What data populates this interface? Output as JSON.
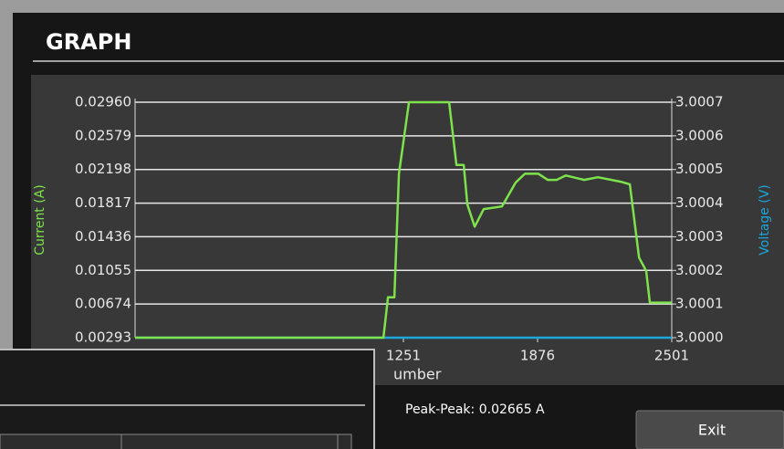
{
  "header": {
    "title": "GRAPH"
  },
  "chart_data": {
    "type": "line",
    "x": [
      1,
      1158,
      1179,
      1209,
      1230,
      1277,
      1464,
      1498,
      1532,
      1549,
      1583,
      1625,
      1710,
      1774,
      1817,
      1880,
      1923,
      1965,
      2008,
      2093,
      2157,
      2263,
      2306,
      2349,
      2382,
      2399,
      2501
    ],
    "series": [
      {
        "name": "Current (A)",
        "color": "#7ee24c",
        "values": [
          0.00293,
          0.00293,
          0.0075,
          0.0075,
          0.0215,
          0.0296,
          0.0296,
          0.0225,
          0.0225,
          0.018,
          0.0155,
          0.0175,
          0.0178,
          0.0205,
          0.0215,
          0.0215,
          0.0208,
          0.0208,
          0.0213,
          0.0208,
          0.0211,
          0.0206,
          0.0203,
          0.012,
          0.0105,
          0.0069,
          0.0069
        ]
      },
      {
        "name": "Voltage (V)",
        "color": "#1ba6dc",
        "axis": "y2",
        "values": [
          3.0,
          3.0,
          3.0,
          3.0,
          3.0,
          3.0,
          3.0,
          3.0,
          3.0,
          3.0,
          3.0,
          3.0,
          3.0,
          3.0,
          3.0,
          3.0,
          3.0,
          3.0,
          3.0,
          3.0,
          3.0,
          3.0,
          3.0,
          3.0,
          3.0,
          3.0,
          3.0
        ]
      }
    ],
    "x_label": "umber",
    "xlim": [
      1,
      2501
    ],
    "xticks": [
      1251,
      1876,
      2501
    ],
    "ylim": [
      0.00293,
      0.0296
    ],
    "yticks": [
      {
        "value": 0.0296,
        "label": "0.02960"
      },
      0.02579,
      0.02198,
      0.01817,
      0.01436,
      0.01055,
      0.00674,
      0.00293
    ],
    "y2lim": [
      3.0,
      3.0007
    ],
    "y2ticks": [
      3.0007,
      3.0006,
      3.0005,
      3.0004,
      3.0003,
      3.0002,
      3.0001,
      {
        "value": 3.0,
        "label": "3.0000"
      }
    ],
    "grid": true
  },
  "footer": {
    "peak": "Peak-Peak: 0.02665 A",
    "exit": "Exit"
  }
}
